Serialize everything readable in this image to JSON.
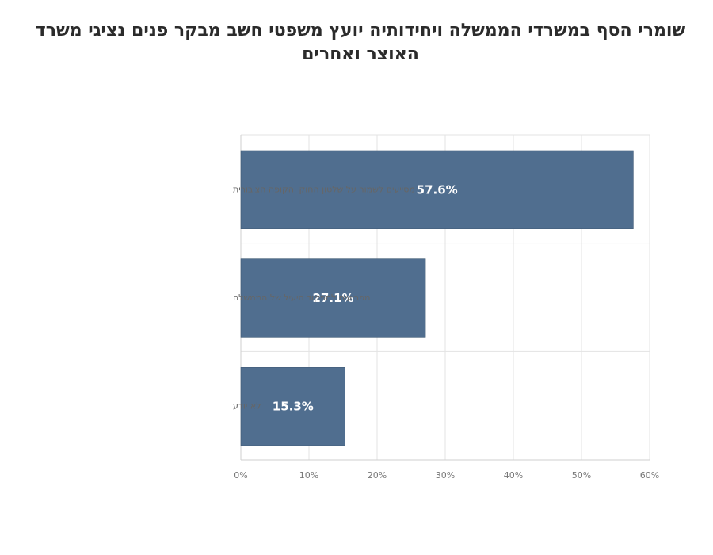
{
  "chart_data": {
    "type": "bar",
    "orientation": "horizontal",
    "title": "שומרי הסף במשרדי הממשלה ויחידותיה יועץ משפטי חשב מבקר פנים נציגי משרד האוצר ואחרים",
    "categories": [
      "מסייעים לשמור על שלטון החוק והקופה הציבורית",
      "מפריעים לתפקוד היעיל של הממשלה",
      "לא יודע"
    ],
    "values": [
      57.6,
      27.1,
      15.3
    ],
    "data_labels": [
      "57.6%",
      "27.1%",
      "15.3%"
    ],
    "xlim": [
      0,
      60
    ],
    "xticks": [
      0,
      10,
      20,
      30,
      40,
      50,
      60
    ],
    "xtick_labels": [
      "0%",
      "10%",
      "20%",
      "30%",
      "40%",
      "50%",
      "60%"
    ],
    "xlabel": "",
    "ylabel": "",
    "grid": true,
    "bar_color": "#506e8f",
    "grid_color": "#e3e3e3",
    "axis_color": "#cfcfcf"
  }
}
